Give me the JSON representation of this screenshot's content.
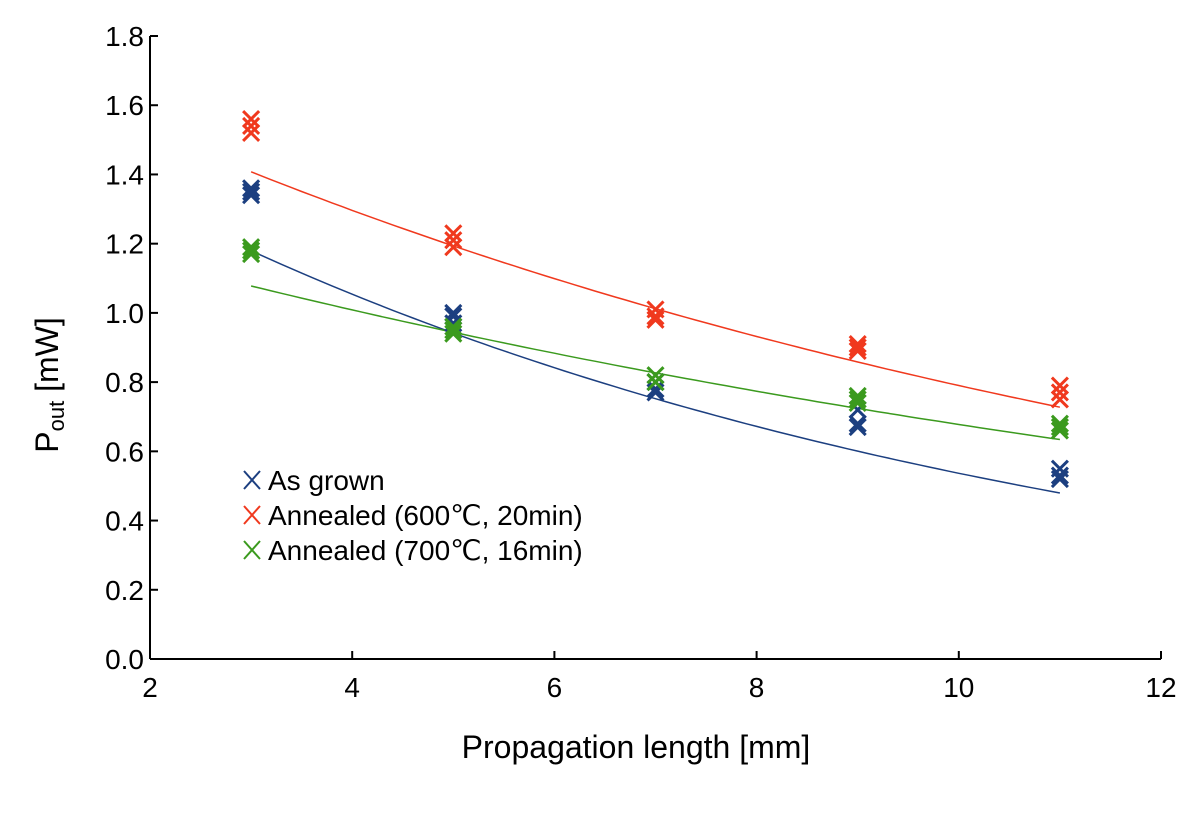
{
  "chart_data": {
    "type": "scatter",
    "title": "",
    "xlabel": "Propagation length [mm]",
    "ylabel_main": "P",
    "ylabel_sub": "out",
    "ylabel_unit": " [mW]",
    "xlim": [
      2,
      12
    ],
    "ylim": [
      0.0,
      1.8
    ],
    "xticks": [
      "2",
      "4",
      "6",
      "8",
      "10",
      "12"
    ],
    "yticks": [
      "0.0",
      "0.2",
      "0.4",
      "0.6",
      "0.8",
      "1.0",
      "1.2",
      "1.4",
      "1.6",
      "1.8"
    ],
    "grid": false,
    "legend_position": "lower-left",
    "series": [
      {
        "name": "As grown",
        "color": "#1c3f80",
        "marker": "x",
        "points": [
          [
            3,
            1.36
          ],
          [
            3,
            1.34
          ],
          [
            3,
            1.35
          ],
          [
            5,
            0.99
          ],
          [
            5,
            0.97
          ],
          [
            5,
            1.0
          ],
          [
            7,
            0.8
          ],
          [
            7,
            0.78
          ],
          [
            7,
            0.77
          ],
          [
            9,
            0.72
          ],
          [
            9,
            0.68
          ],
          [
            9,
            0.67
          ],
          [
            11,
            0.55
          ],
          [
            11,
            0.53
          ],
          [
            11,
            0.52
          ]
        ],
        "fit": {
          "x": [
            3,
            11
          ],
          "a": 1.653,
          "k": 0.1125
        }
      },
      {
        "name": "Annealed (600℃, 20min)",
        "color": "#f0391e",
        "marker": "x",
        "points": [
          [
            3,
            1.56
          ],
          [
            3,
            1.54
          ],
          [
            3,
            1.52
          ],
          [
            5,
            1.23
          ],
          [
            5,
            1.21
          ],
          [
            5,
            1.19
          ],
          [
            7,
            1.01
          ],
          [
            7,
            0.99
          ],
          [
            7,
            0.98
          ],
          [
            9,
            0.91
          ],
          [
            9,
            0.9
          ],
          [
            9,
            0.89
          ],
          [
            11,
            0.79
          ],
          [
            11,
            0.77
          ],
          [
            11,
            0.75
          ]
        ],
        "fit": {
          "x": [
            3,
            11
          ],
          "a": 1.803,
          "k": 0.0825
        }
      },
      {
        "name": "Annealed (700℃, 16min)",
        "color": "#3b9a1e",
        "marker": "x",
        "points": [
          [
            3,
            1.19
          ],
          [
            3,
            1.18
          ],
          [
            3,
            1.17
          ],
          [
            5,
            0.96
          ],
          [
            5,
            0.95
          ],
          [
            5,
            0.94
          ],
          [
            7,
            0.82
          ],
          [
            7,
            0.8
          ],
          [
            9,
            0.76
          ],
          [
            9,
            0.75
          ],
          [
            9,
            0.74
          ],
          [
            11,
            0.68
          ],
          [
            11,
            0.67
          ],
          [
            11,
            0.66
          ]
        ],
        "fit": {
          "x": [
            3,
            11
          ],
          "a": 1.315,
          "k": 0.0663
        }
      }
    ]
  }
}
